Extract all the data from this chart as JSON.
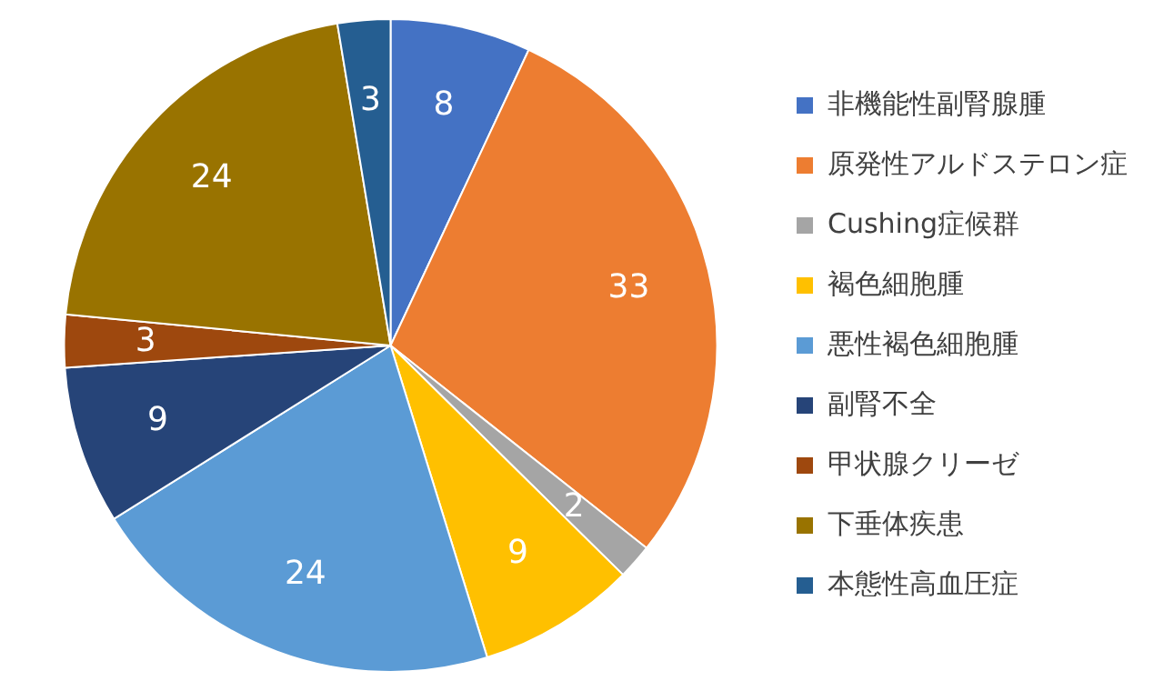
{
  "chart_data": {
    "type": "pie",
    "categories": [
      "非機能性副腎腺腫",
      "原発性アルドステロン症",
      "Cushing症候群",
      "褐色細胞腫",
      "悪性褐色細胞腫",
      "副腎不全",
      "甲状腺クリーゼ",
      "下垂体疾患",
      "本態性高血圧症"
    ],
    "values": [
      8,
      33,
      2,
      9,
      24,
      9,
      3,
      24,
      3
    ],
    "colors": [
      "#4472c4",
      "#ed7d31",
      "#a5a5a5",
      "#ffc000",
      "#5b9bd5",
      "#264478",
      "#9e480e",
      "#997300",
      "#255e91"
    ],
    "data_labels": true,
    "legend": "right"
  }
}
